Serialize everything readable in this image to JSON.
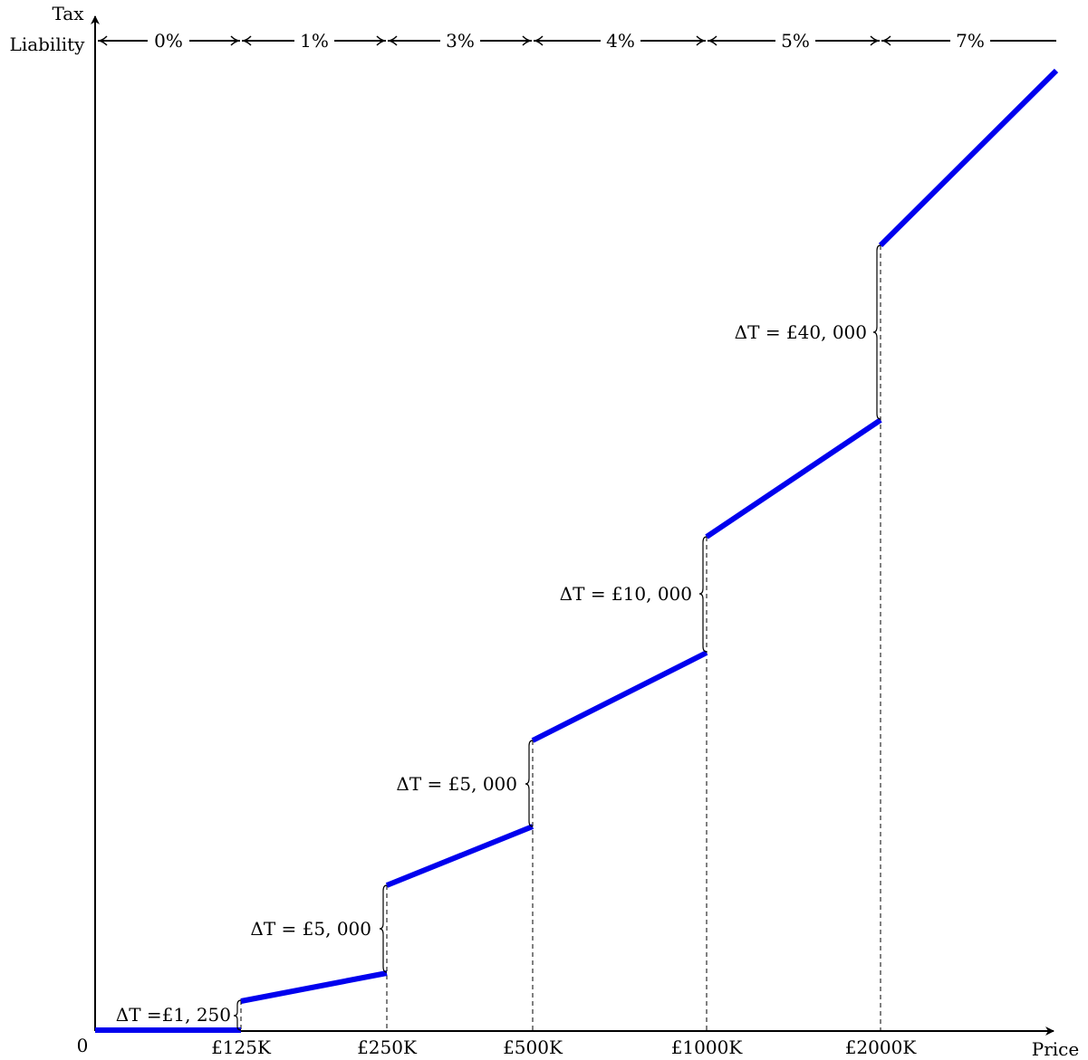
{
  "diagram": {
    "y_axis_label_line1": "Tax",
    "y_axis_label_line2": "Liability",
    "x_axis_label": "Price",
    "origin_label": "0",
    "line_color": "#0000ee",
    "thresholds": [
      {
        "label": "£125K",
        "value": 125000
      },
      {
        "label": "£250K",
        "value": 250000
      },
      {
        "label": "£500K",
        "value": 500000
      },
      {
        "label": "£1000K",
        "value": 1000000
      },
      {
        "label": "£2000K",
        "value": 2000000
      }
    ],
    "bands": [
      {
        "rate_label": "0%"
      },
      {
        "rate_label": "1%"
      },
      {
        "rate_label": "3%"
      },
      {
        "rate_label": "4%"
      },
      {
        "rate_label": "5%"
      },
      {
        "rate_label": "7%"
      }
    ],
    "jumps": [
      {
        "at": "£125K",
        "label": "ΔT =£1, 250"
      },
      {
        "at": "£250K",
        "label": "ΔT = £5, 000"
      },
      {
        "at": "£500K",
        "label": "ΔT = £5, 000"
      },
      {
        "at": "£1000K",
        "label": "ΔT = £10, 000"
      },
      {
        "at": "£2000K",
        "label": "ΔT = £40, 000"
      }
    ]
  }
}
